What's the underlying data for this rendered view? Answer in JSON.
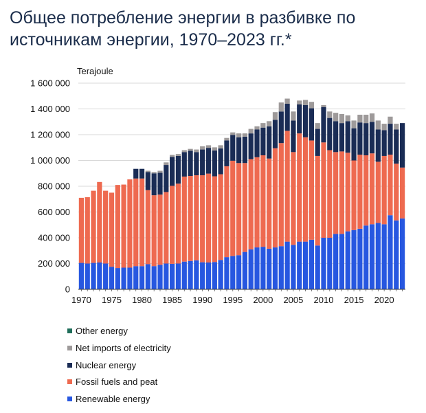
{
  "title": "Общее потребление энергии в разбивке по источникам энергии, 1970–2023 гг.*",
  "chart_data": {
    "type": "bar",
    "stacked": true,
    "unit_label": "Terajoule",
    "ylim": [
      0,
      1600000
    ],
    "yticks": [
      0,
      200000,
      400000,
      600000,
      800000,
      1000000,
      1200000,
      1400000,
      1600000
    ],
    "ytick_labels": [
      "0",
      "200 000",
      "400 000",
      "600 000",
      "800 000",
      "1 000 000",
      "1 200 000",
      "1 400 000",
      "1 600 000"
    ],
    "xtick_labels": [
      "1970",
      "1975",
      "1980",
      "1985",
      "1990",
      "1995",
      "2000",
      "2005",
      "2010",
      "2015",
      "2020"
    ],
    "grid": "horizontal",
    "legend_position": "bottom",
    "categories": [
      "1970",
      "1971",
      "1972",
      "1973",
      "1974",
      "1975",
      "1976",
      "1977",
      "1978",
      "1979",
      "1980",
      "1981",
      "1982",
      "1983",
      "1984",
      "1985",
      "1986",
      "1987",
      "1988",
      "1989",
      "1990",
      "1991",
      "1992",
      "1993",
      "1994",
      "1995",
      "1996",
      "1997",
      "1998",
      "1999",
      "2000",
      "2001",
      "2002",
      "2003",
      "2004",
      "2005",
      "2006",
      "2007",
      "2008",
      "2009",
      "2010",
      "2011",
      "2012",
      "2013",
      "2014",
      "2015",
      "2016",
      "2017",
      "2018",
      "2019",
      "2020",
      "2021",
      "2022",
      "2023"
    ],
    "series": [
      {
        "name": "Renewable energy",
        "color": "#2757e0",
        "values": [
          205000,
          200000,
          205000,
          208000,
          200000,
          175000,
          165000,
          168000,
          168000,
          180000,
          180000,
          195000,
          180000,
          190000,
          200000,
          198000,
          200000,
          215000,
          220000,
          225000,
          210000,
          208000,
          212000,
          228000,
          250000,
          258000,
          265000,
          290000,
          310000,
          325000,
          330000,
          315000,
          325000,
          335000,
          370000,
          345000,
          370000,
          370000,
          385000,
          340000,
          400000,
          400000,
          430000,
          430000,
          450000,
          460000,
          470000,
          495000,
          505000,
          515000,
          505000,
          575000,
          535000,
          550000
        ]
      },
      {
        "name": "Fossil fuels and peat",
        "color": "#ee6a50",
        "values": [
          505000,
          515000,
          560000,
          625000,
          565000,
          575000,
          645000,
          645000,
          685000,
          680000,
          680000,
          575000,
          550000,
          545000,
          555000,
          605000,
          620000,
          660000,
          660000,
          660000,
          675000,
          690000,
          665000,
          665000,
          705000,
          740000,
          715000,
          690000,
          700000,
          700000,
          710000,
          700000,
          770000,
          800000,
          860000,
          720000,
          840000,
          810000,
          770000,
          695000,
          740000,
          680000,
          635000,
          640000,
          610000,
          540000,
          575000,
          545000,
          550000,
          475000,
          530000,
          470000,
          440000,
          395000
        ]
      },
      {
        "name": "Nuclear energy",
        "color": "#1a2c55",
        "values": [
          0,
          0,
          0,
          0,
          0,
          0,
          0,
          0,
          0,
          75000,
          75000,
          140000,
          170000,
          170000,
          210000,
          225000,
          215000,
          190000,
          195000,
          180000,
          200000,
          200000,
          200000,
          200000,
          200000,
          200000,
          200000,
          205000,
          200000,
          215000,
          215000,
          250000,
          220000,
          245000,
          210000,
          245000,
          225000,
          250000,
          250000,
          210000,
          275000,
          250000,
          240000,
          220000,
          245000,
          250000,
          250000,
          250000,
          245000,
          250000,
          200000,
          240000,
          265000,
          345000
        ]
      },
      {
        "name": "Net imports of electricity",
        "color": "#9e9a9a",
        "values": [
          0,
          0,
          0,
          0,
          0,
          0,
          0,
          0,
          0,
          0,
          0,
          10000,
          10000,
          15000,
          20000,
          15000,
          15000,
          15000,
          15000,
          20000,
          25000,
          20000,
          25000,
          25000,
          20000,
          20000,
          30000,
          25000,
          35000,
          25000,
          35000,
          40000,
          60000,
          70000,
          40000,
          70000,
          30000,
          40000,
          50000,
          45000,
          15000,
          50000,
          65000,
          70000,
          45000,
          60000,
          60000,
          65000,
          65000,
          70000,
          50000,
          55000,
          45000,
          0
        ]
      },
      {
        "name": "Other energy",
        "color": "#1f6e5a",
        "values": [
          0,
          0,
          0,
          0,
          0,
          0,
          0,
          0,
          0,
          0,
          0,
          0,
          0,
          0,
          0,
          0,
          0,
          0,
          0,
          0,
          0,
          0,
          0,
          0,
          0,
          0,
          0,
          0,
          0,
          0,
          0,
          0,
          0,
          0,
          0,
          0,
          0,
          0,
          0,
          0,
          0,
          0,
          0,
          0,
          0,
          0,
          0,
          0,
          0,
          0,
          0,
          0,
          0,
          0
        ]
      }
    ],
    "legend_order": [
      "Other energy",
      "Net imports of electricity",
      "Nuclear energy",
      "Fossil fuels and peat",
      "Renewable energy"
    ]
  }
}
